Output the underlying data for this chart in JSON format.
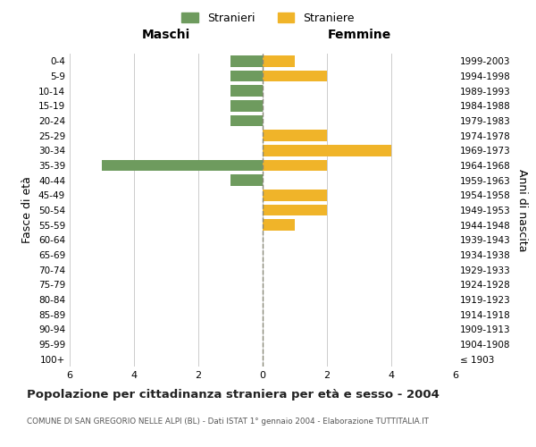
{
  "age_groups": [
    "100+",
    "95-99",
    "90-94",
    "85-89",
    "80-84",
    "75-79",
    "70-74",
    "65-69",
    "60-64",
    "55-59",
    "50-54",
    "45-49",
    "40-44",
    "35-39",
    "30-34",
    "25-29",
    "20-24",
    "15-19",
    "10-14",
    "5-9",
    "0-4"
  ],
  "birth_years": [
    "≤ 1903",
    "1904-1908",
    "1909-1913",
    "1914-1918",
    "1919-1923",
    "1924-1928",
    "1929-1933",
    "1934-1938",
    "1939-1943",
    "1944-1948",
    "1949-1953",
    "1954-1958",
    "1959-1963",
    "1964-1968",
    "1969-1973",
    "1974-1978",
    "1979-1983",
    "1984-1988",
    "1989-1993",
    "1994-1998",
    "1999-2003"
  ],
  "maschi": [
    0,
    0,
    0,
    0,
    0,
    0,
    0,
    0,
    0,
    0,
    0,
    0,
    1,
    5,
    0,
    0,
    1,
    1,
    1,
    1,
    1
  ],
  "femmine": [
    0,
    0,
    0,
    0,
    0,
    0,
    0,
    0,
    0,
    1,
    2,
    2,
    0,
    2,
    4,
    2,
    0,
    0,
    0,
    2,
    1
  ],
  "maschi_color": "#6e9b5e",
  "femmine_color": "#f0b429",
  "bg_color": "#ffffff",
  "grid_color": "#cccccc",
  "center_line_color": "#888877",
  "title": "Popolazione per cittadinanza straniera per età e sesso - 2004",
  "subtitle": "COMUNE DI SAN GREGORIO NELLE ALPI (BL) - Dati ISTAT 1° gennaio 2004 - Elaborazione TUTTITALIA.IT",
  "ylabel_left": "Fasce di età",
  "ylabel_right": "Anni di nascita",
  "xlabel_left": "Maschi",
  "xlabel_right": "Femmine",
  "legend_maschi": "Stranieri",
  "legend_femmine": "Straniere",
  "xlim": 6
}
